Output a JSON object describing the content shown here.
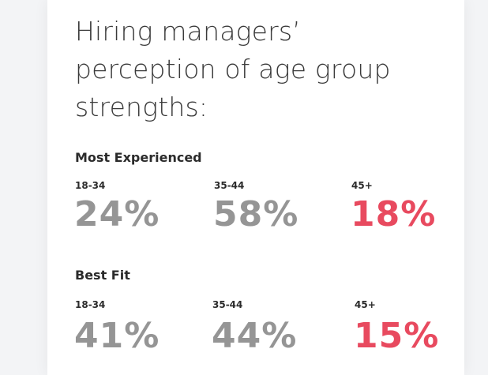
{
  "colors": {
    "value_default": "#959595",
    "value_highlight": "#e84a5f"
  },
  "chart_data": {
    "type": "table",
    "title": "Hiring managers’ perception of age group strengths:",
    "categories": [
      "18-34",
      "35-44",
      "45+"
    ],
    "series": [
      {
        "name": "Most Experienced",
        "values": [
          24,
          58,
          18
        ],
        "labels": [
          "24%",
          "58%",
          "18%"
        ]
      },
      {
        "name": "Best Fit",
        "values": [
          41,
          44,
          15
        ],
        "labels": [
          "41%",
          "44%",
          "15%"
        ]
      }
    ],
    "highlight_category": "45+"
  }
}
